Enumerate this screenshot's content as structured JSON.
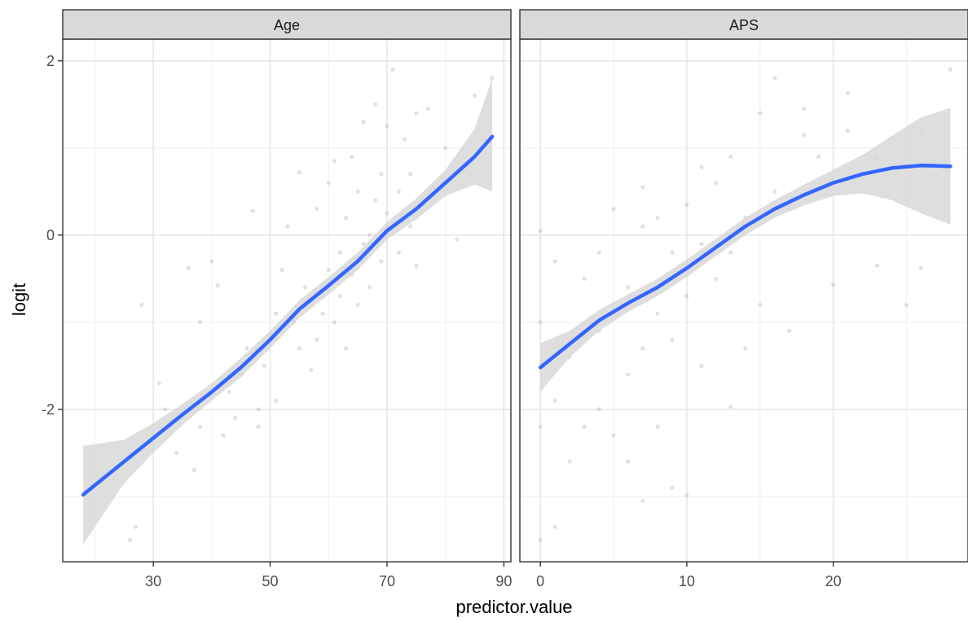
{
  "chart_data": {
    "type": "scatter",
    "xlabel": "predictor.value",
    "ylabel": "logit",
    "ylim": [
      -3.75,
      2.25
    ],
    "yticks": [
      -2,
      0,
      2
    ],
    "ytick_labels": [
      "-2",
      "0",
      "2"
    ],
    "grid": true,
    "point_color": "#b3b3b3",
    "line_color": "#3366ff",
    "ribbon_color": "#d3d3d3",
    "strip_color": "#d9d9d9",
    "panels": [
      {
        "label": "Age",
        "xlim": [
          14.5,
          91.2
        ],
        "xticks": [
          30,
          50,
          70,
          90
        ],
        "xtick_labels": [
          "30",
          "50",
          "70",
          "90"
        ],
        "smooth": {
          "x": [
            18,
            25,
            30,
            35,
            40,
            45,
            50,
            55,
            60,
            65,
            70,
            75,
            80,
            85,
            88
          ],
          "y": [
            -2.98,
            -2.6,
            -2.33,
            -2.06,
            -1.8,
            -1.52,
            -1.2,
            -0.85,
            -0.58,
            -0.3,
            0.05,
            0.3,
            0.6,
            0.9,
            1.13
          ],
          "lower": [
            -3.55,
            -2.85,
            -2.5,
            -2.18,
            -1.9,
            -1.63,
            -1.3,
            -0.95,
            -0.68,
            -0.4,
            -0.05,
            0.18,
            0.45,
            0.58,
            0.5
          ],
          "upper": [
            -2.42,
            -2.35,
            -2.16,
            -1.94,
            -1.7,
            -1.41,
            -1.1,
            -0.75,
            -0.48,
            -0.2,
            0.15,
            0.42,
            0.75,
            1.22,
            1.8
          ]
        },
        "points": [
          {
            "x": 26,
            "y": -3.5
          },
          {
            "x": 27,
            "y": -3.35
          },
          {
            "x": 28,
            "y": -0.8
          },
          {
            "x": 31,
            "y": -1.7
          },
          {
            "x": 32,
            "y": -2.0
          },
          {
            "x": 34,
            "y": -2.5
          },
          {
            "x": 36,
            "y": -0.38
          },
          {
            "x": 37,
            "y": -2.7
          },
          {
            "x": 38,
            "y": -1.0
          },
          {
            "x": 38,
            "y": -2.2
          },
          {
            "x": 40,
            "y": -0.3
          },
          {
            "x": 41,
            "y": -0.58
          },
          {
            "x": 42,
            "y": -2.3
          },
          {
            "x": 43,
            "y": -1.8
          },
          {
            "x": 44,
            "y": -2.1
          },
          {
            "x": 45,
            "y": -1.6
          },
          {
            "x": 46,
            "y": -1.3
          },
          {
            "x": 47,
            "y": 0.28
          },
          {
            "x": 48,
            "y": -2.0
          },
          {
            "x": 48,
            "y": -2.2
          },
          {
            "x": 49,
            "y": -1.5
          },
          {
            "x": 50,
            "y": -1.2
          },
          {
            "x": 51,
            "y": -1.9
          },
          {
            "x": 51,
            "y": -0.9
          },
          {
            "x": 52,
            "y": -0.4
          },
          {
            "x": 53,
            "y": 0.1
          },
          {
            "x": 54,
            "y": -1.0
          },
          {
            "x": 55,
            "y": 0.72
          },
          {
            "x": 55,
            "y": -1.3
          },
          {
            "x": 56,
            "y": -0.6
          },
          {
            "x": 57,
            "y": -1.55
          },
          {
            "x": 58,
            "y": -1.2
          },
          {
            "x": 58,
            "y": 0.3
          },
          {
            "x": 59,
            "y": -0.9
          },
          {
            "x": 60,
            "y": 0.6
          },
          {
            "x": 60,
            "y": -0.4
          },
          {
            "x": 61,
            "y": 0.85
          },
          {
            "x": 61,
            "y": -1.0
          },
          {
            "x": 62,
            "y": -0.2
          },
          {
            "x": 62,
            "y": -0.7
          },
          {
            "x": 63,
            "y": 0.2
          },
          {
            "x": 63,
            "y": -1.3
          },
          {
            "x": 64,
            "y": 0.9
          },
          {
            "x": 64,
            "y": -0.45
          },
          {
            "x": 65,
            "y": 0.5
          },
          {
            "x": 65,
            "y": -0.8
          },
          {
            "x": 66,
            "y": 1.3
          },
          {
            "x": 66,
            "y": -0.1
          },
          {
            "x": 67,
            "y": 0.0
          },
          {
            "x": 67,
            "y": -0.6
          },
          {
            "x": 68,
            "y": 1.5
          },
          {
            "x": 68,
            "y": 0.4
          },
          {
            "x": 69,
            "y": 0.7
          },
          {
            "x": 69,
            "y": -0.3
          },
          {
            "x": 70,
            "y": 1.25
          },
          {
            "x": 70,
            "y": 0.25
          },
          {
            "x": 71,
            "y": 1.9
          },
          {
            "x": 72,
            "y": 0.5
          },
          {
            "x": 72,
            "y": -0.2
          },
          {
            "x": 73,
            "y": 1.1
          },
          {
            "x": 74,
            "y": 0.1
          },
          {
            "x": 74,
            "y": 0.7
          },
          {
            "x": 75,
            "y": 1.4
          },
          {
            "x": 75,
            "y": -0.35
          },
          {
            "x": 76,
            "y": 0.35
          },
          {
            "x": 77,
            "y": 1.45
          },
          {
            "x": 78,
            "y": 0.55
          },
          {
            "x": 80,
            "y": 1.0
          },
          {
            "x": 82,
            "y": -0.05
          },
          {
            "x": 85,
            "y": 1.6
          },
          {
            "x": 88,
            "y": 1.8
          }
        ]
      },
      {
        "label": "APS",
        "xlim": [
          -1.4,
          29.2
        ],
        "xticks": [
          0,
          10,
          20
        ],
        "xtick_labels": [
          "0",
          "10",
          "20"
        ],
        "smooth": {
          "x": [
            0,
            2,
            4,
            6,
            8,
            10,
            12,
            14,
            16,
            18,
            20,
            22,
            24,
            26,
            28
          ],
          "y": [
            -1.52,
            -1.25,
            -0.98,
            -0.78,
            -0.6,
            -0.38,
            -0.14,
            0.1,
            0.3,
            0.46,
            0.6,
            0.7,
            0.77,
            0.8,
            0.79
          ],
          "lower": [
            -1.8,
            -1.4,
            -1.1,
            -0.88,
            -0.7,
            -0.48,
            -0.24,
            0.0,
            0.2,
            0.34,
            0.45,
            0.48,
            0.4,
            0.25,
            0.12
          ],
          "upper": [
            -1.24,
            -1.1,
            -0.86,
            -0.68,
            -0.5,
            -0.28,
            -0.04,
            0.2,
            0.4,
            0.58,
            0.75,
            0.92,
            1.14,
            1.35,
            1.46
          ]
        },
        "points": [
          {
            "x": 0,
            "y": -3.5
          },
          {
            "x": 0,
            "y": -2.2
          },
          {
            "x": 0,
            "y": -1.0
          },
          {
            "x": 0,
            "y": 0.05
          },
          {
            "x": 1,
            "y": -3.35
          },
          {
            "x": 1,
            "y": -1.9
          },
          {
            "x": 1,
            "y": -0.3
          },
          {
            "x": 2,
            "y": -2.6
          },
          {
            "x": 2,
            "y": -1.4
          },
          {
            "x": 3,
            "y": -2.2
          },
          {
            "x": 3,
            "y": -0.5
          },
          {
            "x": 4,
            "y": -2.0
          },
          {
            "x": 4,
            "y": -1.1
          },
          {
            "x": 4,
            "y": -0.2
          },
          {
            "x": 5,
            "y": -2.3
          },
          {
            "x": 5,
            "y": -0.9
          },
          {
            "x": 5,
            "y": 0.3
          },
          {
            "x": 6,
            "y": -2.6
          },
          {
            "x": 6,
            "y": -1.6
          },
          {
            "x": 6,
            "y": -0.6
          },
          {
            "x": 7,
            "y": -3.05
          },
          {
            "x": 7,
            "y": -1.3
          },
          {
            "x": 7,
            "y": 0.1
          },
          {
            "x": 7,
            "y": 0.55
          },
          {
            "x": 8,
            "y": -2.2
          },
          {
            "x": 8,
            "y": -0.9
          },
          {
            "x": 8,
            "y": 0.2
          },
          {
            "x": 9,
            "y": -2.9
          },
          {
            "x": 9,
            "y": -0.2
          },
          {
            "x": 9,
            "y": -1.2
          },
          {
            "x": 10,
            "y": -2.99
          },
          {
            "x": 10,
            "y": -0.7
          },
          {
            "x": 10,
            "y": 0.35
          },
          {
            "x": 11,
            "y": -1.5
          },
          {
            "x": 11,
            "y": -0.1
          },
          {
            "x": 11,
            "y": 0.78
          },
          {
            "x": 12,
            "y": -0.5
          },
          {
            "x": 12,
            "y": 0.6
          },
          {
            "x": 13,
            "y": -1.97
          },
          {
            "x": 13,
            "y": -0.2
          },
          {
            "x": 13,
            "y": 0.9
          },
          {
            "x": 14,
            "y": 0.2
          },
          {
            "x": 14,
            "y": -1.3
          },
          {
            "x": 15,
            "y": 1.4
          },
          {
            "x": 15,
            "y": -0.8
          },
          {
            "x": 16,
            "y": 0.5
          },
          {
            "x": 16,
            "y": 1.8
          },
          {
            "x": 17,
            "y": -1.1
          },
          {
            "x": 17,
            "y": 0.3
          },
          {
            "x": 18,
            "y": 1.45
          },
          {
            "x": 18,
            "y": 1.15
          },
          {
            "x": 19,
            "y": 0.9
          },
          {
            "x": 20,
            "y": -0.57
          },
          {
            "x": 21,
            "y": 1.63
          },
          {
            "x": 21,
            "y": 1.2
          },
          {
            "x": 23,
            "y": 0.88
          },
          {
            "x": 23,
            "y": -0.35
          },
          {
            "x": 25,
            "y": -0.8
          },
          {
            "x": 26,
            "y": 1.2
          },
          {
            "x": 26,
            "y": -0.38
          },
          {
            "x": 28,
            "y": 1.9
          }
        ]
      }
    ]
  }
}
